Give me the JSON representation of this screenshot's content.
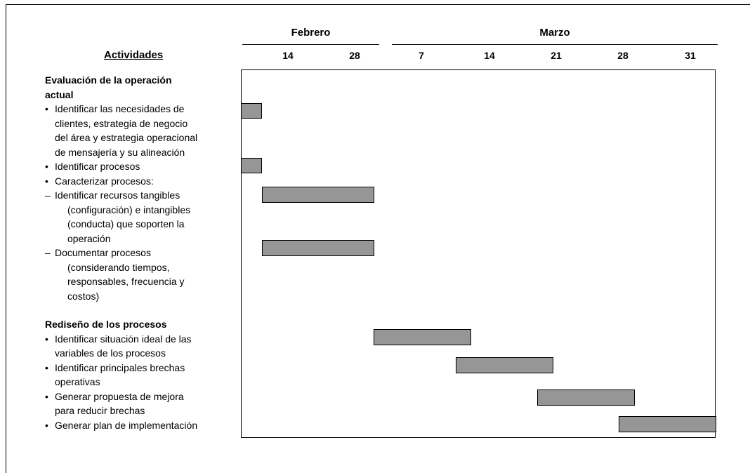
{
  "header": {
    "activities_label": "Actividades",
    "months": [
      {
        "label": "Febrero"
      },
      {
        "label": "Marzo"
      }
    ],
    "ticks": [
      "14",
      "28",
      "7",
      "14",
      "21",
      "28",
      "31"
    ]
  },
  "sections": [
    {
      "title_lines": [
        "Evaluación de la operación",
        "actual"
      ],
      "items": [
        {
          "level": 1,
          "lines": [
            "Identificar las necesidades de",
            "clientes, estrategia de negocio",
            "del área y estrategia operacional",
            "de mensajería y su alineación"
          ],
          "bar": {
            "start_tick": -0.3,
            "end_tick": 0.0
          }
        },
        {
          "level": 1,
          "lines": [
            "Identificar procesos"
          ],
          "bar": {
            "start_tick": -0.3,
            "end_tick": 0.0
          }
        },
        {
          "level": 1,
          "lines": [
            "Caracterizar procesos:"
          ]
        },
        {
          "level": 2,
          "lines": [
            "Identificar recursos tangibles",
            "(configuración) e intangibles",
            "(conducta) que soporten la",
            "operación"
          ],
          "bar": {
            "start_tick": 0.0,
            "end_tick": 1.3
          }
        },
        {
          "level": 2,
          "lines": [
            "Documentar procesos",
            "(considerando tiempos,",
            "responsables, frecuencia y",
            "costos)"
          ],
          "bar": {
            "start_tick": 0.0,
            "end_tick": 1.3
          }
        }
      ]
    },
    {
      "title_lines": [
        "Rediseño de los procesos"
      ],
      "items": [
        {
          "level": 1,
          "lines": [
            "Identificar situación ideal de las",
            "variables de los procesos"
          ],
          "bar": {
            "start_tick": 1.3,
            "end_tick": 2.7
          }
        },
        {
          "level": 1,
          "lines": [
            "Identificar principales brechas",
            "operativas"
          ],
          "bar": {
            "start_tick": 2.5,
            "end_tick": 3.9
          }
        },
        {
          "level": 1,
          "lines": [
            "Generar propuesta de mejora",
            "para reducir brechas"
          ],
          "bar": {
            "start_tick": 3.7,
            "end_tick": 5.1
          }
        },
        {
          "level": 1,
          "lines": [
            "Generar plan de implementación"
          ],
          "bar": {
            "start_tick": 4.9,
            "end_tick": 6.3
          }
        }
      ]
    }
  ]
}
